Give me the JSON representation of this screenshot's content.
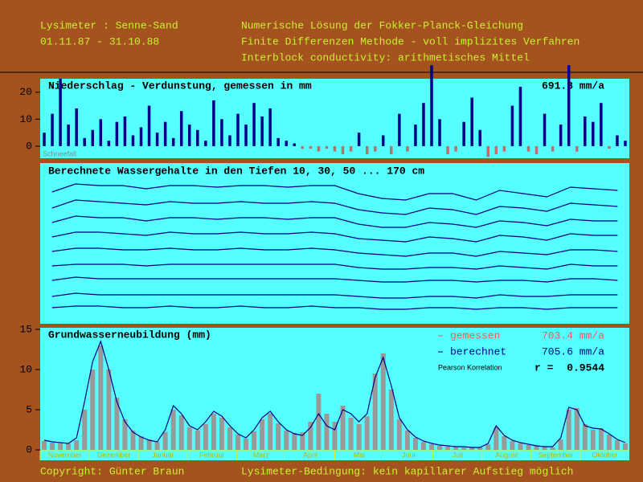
{
  "header": {
    "left": [
      "Lysimeter : Senne-Sand",
      "01.11.87 - 31.10.88"
    ],
    "right": [
      "Numerische Lösung der Fokker-Planck-Gleichung",
      "Finite Differenzen Methode - voll implizites Verfahren",
      "Interblock conductivity: arithmetisches Mittel"
    ]
  },
  "footer": {
    "left": "Copyright: Günter Braun",
    "right": "Lysimeter-Bedingung: kein kapillarer Aufstieg möglich"
  },
  "chart_data": [
    {
      "type": "bar",
      "title": "Niederschlag - Verdunstung, gemessen in mm",
      "total_label": "691.8 mm/a",
      "annotation": "Schneefall",
      "color": "#000088",
      "negative_color": "#b87070",
      "ylim": [
        -4.5,
        25
      ],
      "yticks": [
        0,
        10,
        20
      ],
      "values": [
        5,
        12,
        25,
        8,
        14,
        3,
        6,
        10,
        2,
        9,
        11,
        4,
        7,
        15,
        5,
        9,
        3,
        13,
        8,
        6,
        2,
        17,
        10,
        4,
        12,
        8,
        16,
        11,
        14,
        3,
        2,
        1,
        -1,
        -1,
        -2,
        -1,
        -2,
        -3,
        -2,
        5,
        -3,
        -2,
        4,
        -3,
        12,
        -2,
        8,
        16,
        30,
        10,
        -3,
        -2,
        9,
        18,
        6,
        -4,
        -3,
        -2,
        15,
        22,
        -2,
        -3,
        12,
        -2,
        8,
        30,
        -2,
        11,
        9,
        16,
        -1,
        4,
        2
      ]
    },
    {
      "type": "line",
      "title": "Berechnete Wassergehalte in den Tiefen 10, 30, 50 ... 170 cm",
      "color": "#000080",
      "ylim": [
        0,
        100
      ],
      "series": [
        {
          "values": [
            82,
            87,
            86,
            86,
            84,
            86,
            86,
            85,
            86,
            86,
            85,
            86,
            86,
            81,
            78,
            77,
            81,
            81,
            77,
            83,
            81,
            79,
            85,
            84,
            83
          ]
        },
        {
          "values": [
            72,
            77,
            76,
            75,
            74,
            76,
            75,
            75,
            76,
            75,
            75,
            76,
            75,
            71,
            69,
            68,
            72,
            71,
            68,
            73,
            72,
            70,
            75,
            74,
            73
          ]
        },
        {
          "values": [
            63,
            67,
            66,
            66,
            64,
            66,
            66,
            65,
            66,
            66,
            65,
            66,
            66,
            62,
            60,
            60,
            63,
            62,
            60,
            64,
            63,
            61,
            65,
            64,
            64
          ]
        },
        {
          "values": [
            54,
            57,
            57,
            56,
            55,
            57,
            56,
            56,
            57,
            56,
            56,
            57,
            56,
            53,
            52,
            51,
            54,
            53,
            51,
            55,
            54,
            52,
            56,
            55,
            55
          ]
        },
        {
          "values": [
            45,
            47,
            47,
            46,
            46,
            47,
            46,
            46,
            47,
            46,
            46,
            47,
            46,
            44,
            43,
            42,
            44,
            44,
            42,
            45,
            44,
            43,
            46,
            46,
            45
          ]
        },
        {
          "values": [
            36,
            37,
            37,
            37,
            36,
            37,
            37,
            37,
            37,
            37,
            37,
            37,
            37,
            35,
            34,
            34,
            35,
            35,
            34,
            36,
            35,
            34,
            37,
            36,
            36
          ]
        },
        {
          "values": [
            27,
            29,
            28,
            28,
            28,
            28,
            28,
            28,
            28,
            28,
            28,
            28,
            28,
            27,
            26,
            26,
            27,
            27,
            26,
            27,
            27,
            26,
            28,
            28,
            27
          ]
        },
        {
          "values": [
            17,
            19,
            18,
            18,
            18,
            18,
            18,
            18,
            18,
            18,
            18,
            18,
            18,
            17,
            16,
            16,
            17,
            17,
            16,
            18,
            17,
            17,
            18,
            18,
            18
          ]
        },
        {
          "values": [
            10,
            11,
            11,
            10,
            10,
            11,
            10,
            10,
            11,
            10,
            10,
            11,
            10,
            10,
            9,
            9,
            10,
            10,
            9,
            10,
            10,
            9,
            10,
            10,
            10
          ]
        }
      ]
    },
    {
      "type": "combo",
      "title": "Grundwasserneubildung (mm)",
      "ylim": [
        0,
        15.2
      ],
      "yticks": [
        0,
        5,
        10,
        15
      ],
      "months": [
        "November",
        "Dezember",
        "Januar",
        "Februar",
        "Marz",
        "April",
        "Mai",
        "Juni",
        "Juli",
        "August",
        "September",
        "Oktober"
      ],
      "correlation_label": "Pearson Korrelation",
      "r_label": "r =",
      "r": 0.9544,
      "series": [
        {
          "name": "gemessen",
          "total_label": "703.4 mm/a",
          "color": "#999999",
          "legend_color": "#ff5555",
          "values": [
            1.1,
            0.9,
            0.8,
            0.8,
            1.2,
            5,
            10,
            13,
            10,
            6.5,
            3.8,
            2.4,
            1.7,
            1.3,
            1.0,
            2.2,
            5.0,
            4.3,
            2.8,
            2.4,
            3.2,
            4.5,
            4.0,
            2.8,
            1.9,
            1.4,
            2.3,
            3.8,
            4.5,
            3.3,
            2.4,
            2.1,
            2.2,
            3.5,
            7.0,
            4.5,
            3.5,
            5.5,
            4.0,
            3.2,
            4.2,
            9.5,
            12,
            7.5,
            3.8,
            2.4,
            1.5,
            1.0,
            0.7,
            0.5,
            0.4,
            0.4,
            0.3,
            0.3,
            0.3,
            0.7,
            2.8,
            1.7,
            1.1,
            0.8,
            0.6,
            0.5,
            0.4,
            0.3,
            1.3,
            5.0,
            5.2,
            3.2,
            2.5,
            2.7,
            1.9,
            1.2,
            0.8
          ]
        },
        {
          "name": "berechnet",
          "total_label": "705.6 mm/a",
          "color": "#000088",
          "legend_color": "#000088",
          "values": [
            1.2,
            1.0,
            0.9,
            0.8,
            1.5,
            6,
            11,
            13.5,
            10,
            6,
            3.5,
            2.2,
            1.6,
            1.2,
            1.0,
            2.5,
            5.5,
            4.5,
            3.0,
            2.5,
            3.5,
            4.8,
            4.2,
            3.0,
            2.0,
            1.5,
            2.5,
            4,
            4.8,
            3.5,
            2.5,
            2.0,
            1.8,
            2.8,
            4.5,
            3.0,
            2.5,
            5.0,
            4.5,
            3.5,
            4.5,
            9,
            11.5,
            8,
            4,
            2.5,
            1.6,
            1.1,
            0.8,
            0.6,
            0.5,
            0.4,
            0.4,
            0.3,
            0.3,
            0.8,
            3.0,
            1.8,
            1.2,
            0.9,
            0.7,
            0.5,
            0.4,
            0.4,
            1.5,
            5.3,
            5.0,
            3.0,
            2.7,
            2.6,
            2.0,
            1.3,
            0.9
          ]
        }
      ]
    }
  ]
}
